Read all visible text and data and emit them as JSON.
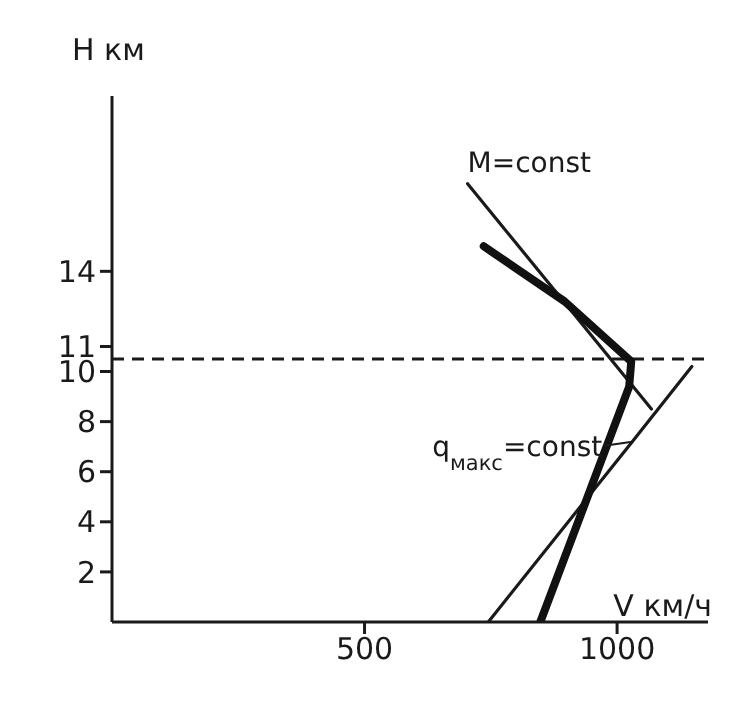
{
  "chart_data": {
    "type": "line",
    "xlabel": "V км/ч",
    "ylabel": "H км",
    "xlim": [
      0,
      1180
    ],
    "ylim": [
      0,
      21
    ],
    "xticks": [
      500,
      1000
    ],
    "yticks": [
      2,
      4,
      6,
      8,
      10,
      11,
      14
    ],
    "grid": false,
    "marker": "none",
    "series": [
      {
        "name": "M=const",
        "color": "#1a1a1a",
        "x": [
          704,
          1068
        ],
        "values": [
          17.5,
          8.5
        ]
      },
      {
        "name": "q$_{макс}$=const",
        "color": "#1a1a1a",
        "x": [
          745,
          1030,
          1148
        ],
        "values": [
          0,
          7.2,
          10.2
        ]
      },
      {
        "color": "#111111",
        "x": [
          848,
          1024,
          1028,
          896,
          736
        ],
        "values": [
          0,
          9.4,
          10.4,
          12.8,
          15
        ]
      }
    ],
    "ref_lines": [
      {
        "axis": "y",
        "value": 10.5,
        "line_style": "dashed",
        "color": "#1a1a1a"
      }
    ]
  }
}
